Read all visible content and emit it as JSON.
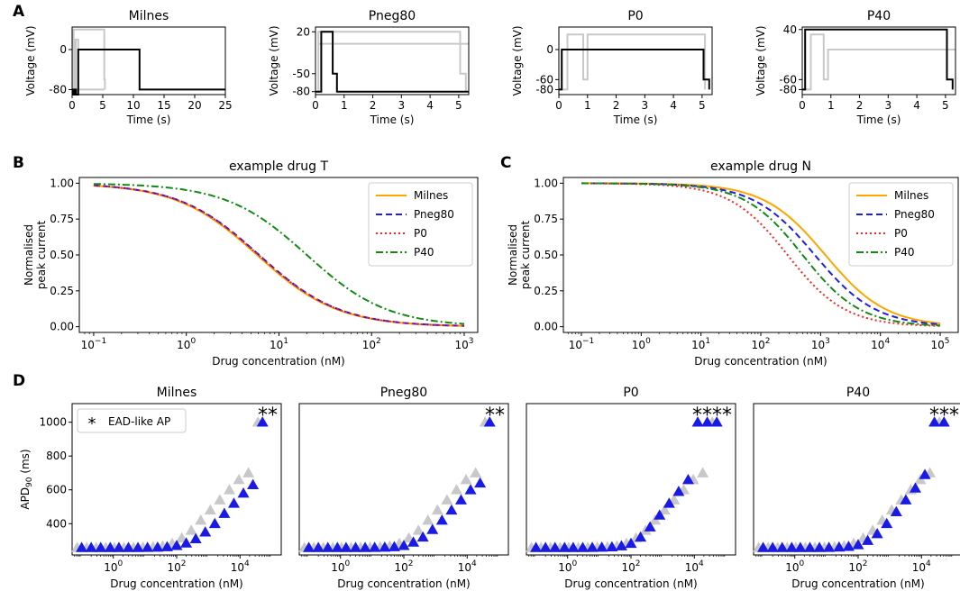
{
  "panel_labels": [
    "A",
    "B",
    "C",
    "D"
  ],
  "chart_data": [
    {
      "id": "A",
      "type": "line",
      "description_title": "Voltage protocols",
      "ylabel": "Voltage (mV)",
      "xlabel": "Time (s)",
      "subplots": [
        {
          "title": "Milnes",
          "xlim": [
            0,
            25
          ],
          "ylim": [
            -90,
            45
          ],
          "xticks": [
            0,
            5,
            10,
            15,
            20,
            25
          ],
          "yticks": [
            -80,
            0
          ],
          "series": [
            {
              "name": "Milnes",
              "color": "#000000",
              "x": [
                0,
                0.15,
                0.15,
                0.35,
                0.35,
                0.65,
                0.65,
                1,
                1,
                11,
                11,
                25
              ],
              "y": [
                -80,
                -80,
                -90,
                -90,
                -80,
                -80,
                -90,
                -90,
                0,
                0,
                -80,
                -80
              ]
            },
            {
              "name": "P40 (grey overlay)",
              "color": "#c8c8c8",
              "x": [
                0,
                0.1,
                0.1,
                0.15,
                0.15,
                0.2,
                0.2,
                0.25,
                0.25,
                1,
                1,
                5.1,
                5.1,
                5.25,
                5.25,
                5.35,
                5.35
              ],
              "y": [
                -80,
                -80,
                40,
                40,
                -60,
                -60,
                -80,
                -80,
                40,
                40,
                40,
                40,
                40,
                40,
                -60,
                -60,
                -80
              ]
            },
            {
              "name": "Pneg80 (grey overlay)",
              "color": "#c8c8c8",
              "x": [
                0,
                0.2,
                0.2,
                0.4,
                0.4,
                0.6,
                0.6,
                1,
                1,
                5.3,
                5.3
              ],
              "y": [
                -80,
                -80,
                20,
                20,
                -80,
                -80,
                20,
                20,
                -80,
                -80,
                -80
              ]
            }
          ]
        },
        {
          "title": "Pneg80",
          "xlim": [
            0,
            5.35
          ],
          "ylim": [
            -85,
            28
          ],
          "xticks": [
            0,
            1,
            2,
            3,
            4,
            5
          ],
          "yticks": [
            -80,
            -50,
            20
          ],
          "series": [
            {
              "name": "Pneg80",
              "color": "#000000",
              "x": [
                0,
                0.2,
                0.2,
                0.6,
                0.6,
                0.75,
                0.75,
                0.95,
                0.95,
                5.35
              ],
              "y": [
                -80,
                -80,
                20,
                20,
                -50,
                -50,
                -80,
                -80,
                -80,
                -80
              ]
            },
            {
              "name": "grey overlay 1",
              "color": "#c8c8c8",
              "x": [
                0,
                0.1,
                0.1,
                0.9,
                0.9,
                5.05,
                5.05,
                5.25,
                5.25
              ],
              "y": [
                -80,
                -80,
                20,
                20,
                20,
                20,
                -50,
                -50,
                -80
              ]
            },
            {
              "name": "grey overlay 2",
              "color": "#c8c8c8",
              "x": [
                0.1,
                0.9,
                0.9,
                1.0,
                1.0,
                5.35
              ],
              "y": [
                0,
                0,
                0,
                0,
                0,
                0
              ]
            }
          ]
        },
        {
          "title": "P0",
          "xlim": [
            0,
            5.35
          ],
          "ylim": [
            -90,
            45
          ],
          "xticks": [
            0,
            1,
            2,
            3,
            4,
            5
          ],
          "yticks": [
            -80,
            -60,
            0
          ],
          "series": [
            {
              "name": "P0",
              "color": "#000000",
              "x": [
                0,
                0.1,
                0.1,
                5.05,
                5.05,
                5.25,
                5.25
              ],
              "y": [
                -80,
                -80,
                0,
                0,
                -60,
                -60,
                -80
              ]
            },
            {
              "name": "grey overlay",
              "color": "#c8c8c8",
              "x": [
                0,
                0.3,
                0.3,
                0.85,
                0.85,
                1.0,
                1.0,
                5.1,
                5.1
              ],
              "y": [
                -80,
                -80,
                30,
                30,
                -60,
                -60,
                30,
                30,
                -80
              ]
            }
          ]
        },
        {
          "title": "P40",
          "xlim": [
            0,
            5.35
          ],
          "ylim": [
            -90,
            45
          ],
          "xticks": [
            0,
            1,
            2,
            3,
            4,
            5
          ],
          "yticks": [
            -80,
            -60,
            40
          ],
          "series": [
            {
              "name": "P40",
              "color": "#000000",
              "x": [
                0,
                0.1,
                0.1,
                5.05,
                5.05,
                5.25,
                5.25
              ],
              "y": [
                -80,
                -80,
                40,
                40,
                -60,
                -60,
                -80
              ]
            },
            {
              "name": "grey overlay",
              "color": "#c8c8c8",
              "x": [
                0,
                0.3,
                0.3,
                0.75,
                0.75,
                0.9,
                0.9,
                5.35
              ],
              "y": [
                -80,
                -80,
                30,
                30,
                -60,
                -60,
                0,
                0
              ]
            }
          ]
        }
      ]
    },
    {
      "id": "B",
      "type": "line",
      "title": "example drug T",
      "xlabel": "Drug concentration (nM)",
      "ylabel": "Normalised\npeak current",
      "xscale": "log",
      "xlim": [
        0.07,
        1400
      ],
      "ylim": [
        -0.04,
        1.04
      ],
      "xticks": [
        {
          "v": 0.1,
          "b": "10",
          "e": "−1"
        },
        {
          "v": 1,
          "b": "10",
          "e": "0"
        },
        {
          "v": 10,
          "b": "10",
          "e": "1"
        },
        {
          "v": 100,
          "b": "10",
          "e": "2"
        },
        {
          "v": 1000,
          "b": "10",
          "e": "3"
        }
      ],
      "yticks": [
        "0.00",
        "0.25",
        "0.50",
        "0.75",
        "1.00"
      ],
      "legend": "top-right",
      "series": [
        {
          "name": "Milnes",
          "color": "#ffa500",
          "dash": "",
          "ic50": 5.8,
          "hill": 1.0
        },
        {
          "name": "Pneg80",
          "color": "#1f1fe0",
          "dash": "7,4",
          "ic50": 6.1,
          "hill": 1.0
        },
        {
          "name": "P0",
          "color": "#ff2020",
          "dash": "2,3",
          "ic50": 6.0,
          "hill": 1.0
        },
        {
          "name": "P40",
          "color": "#138a13",
          "dash": "8,3,2,3",
          "ic50": 20.0,
          "hill": 1.0
        }
      ]
    },
    {
      "id": "C",
      "type": "line",
      "title": "example drug N",
      "xlabel": "Drug concentration (nM)",
      "ylabel": "Normalised\npeak current",
      "xscale": "log",
      "xlim": [
        0.05,
        200000
      ],
      "ylim": [
        -0.04,
        1.04
      ],
      "xticks": [
        {
          "v": 0.1,
          "b": "10",
          "e": "−1"
        },
        {
          "v": 1,
          "b": "10",
          "e": "0"
        },
        {
          "v": 10,
          "b": "10",
          "e": "1"
        },
        {
          "v": 100,
          "b": "10",
          "e": "2"
        },
        {
          "v": 1000,
          "b": "10",
          "e": "3"
        },
        {
          "v": 10000,
          "b": "10",
          "e": "4"
        },
        {
          "v": 100000,
          "b": "10",
          "e": "5"
        }
      ],
      "yticks": [
        "0.00",
        "0.25",
        "0.50",
        "0.75",
        "1.00"
      ],
      "legend": "top-right",
      "series": [
        {
          "name": "Milnes",
          "color": "#ffa500",
          "dash": "",
          "ic50": 1200,
          "hill": 0.85
        },
        {
          "name": "Pneg80",
          "color": "#1f1fe0",
          "dash": "7,4",
          "ic50": 800,
          "hill": 0.85
        },
        {
          "name": "P0",
          "color": "#ff2020",
          "dash": "2,3",
          "ic50": 280,
          "hill": 0.9
        },
        {
          "name": "P40",
          "color": "#138a13",
          "dash": "8,3,2,3",
          "ic50": 500,
          "hill": 0.9
        }
      ]
    },
    {
      "id": "D",
      "type": "scatter",
      "ylabel": "APD",
      "ylabel_sub": "90",
      "ylabel_unit": " (ms)",
      "xlabel": "Drug concentration (nM)",
      "xscale": "log",
      "xlim": [
        0.05,
        200000
      ],
      "ylim": [
        215,
        1110
      ],
      "xticks": [
        {
          "v": 1,
          "b": "10",
          "e": "0"
        },
        {
          "v": 100,
          "b": "10",
          "e": "2"
        },
        {
          "v": 10000,
          "b": "10",
          "e": "4"
        }
      ],
      "yticks": [
        400,
        600,
        800,
        1000
      ],
      "legend": {
        "marker": "*",
        "label": "EAD-like AP"
      },
      "x": [
        0.1,
        0.2,
        0.4,
        0.8,
        1.5,
        3,
        6,
        12,
        25,
        50,
        100,
        200,
        400,
        800,
        1600,
        3200,
        6400,
        12800,
        25600,
        51200
      ],
      "grey_apd": [
        258,
        258,
        258,
        258,
        258,
        258,
        259,
        260,
        262,
        268,
        283,
        315,
        360,
        420,
        480,
        540,
        600,
        660,
        700,
        1000
      ],
      "subplots": [
        {
          "title": "Milnes",
          "apd": [
            258,
            258,
            258,
            258,
            258,
            258,
            258,
            259,
            260,
            263,
            270,
            285,
            310,
            350,
            400,
            460,
            520,
            580,
            630,
            1000
          ],
          "stars": "**"
        },
        {
          "title": "Pneg80",
          "apd": [
            258,
            258,
            258,
            258,
            258,
            258,
            258,
            259,
            260,
            263,
            270,
            290,
            320,
            365,
            420,
            480,
            540,
            600,
            640,
            1000
          ],
          "stars": "**"
        },
        {
          "title": "P0",
          "apd": [
            258,
            258,
            258,
            258,
            258,
            258,
            259,
            260,
            262,
            268,
            283,
            320,
            380,
            450,
            520,
            590,
            660,
            1000,
            1000,
            1000
          ],
          "stars": "****"
        },
        {
          "title": "P40",
          "apd": [
            258,
            258,
            258,
            258,
            258,
            258,
            258,
            259,
            261,
            265,
            275,
            300,
            340,
            400,
            470,
            540,
            610,
            690,
            1000,
            1000
          ],
          "stars": "***"
        }
      ]
    }
  ]
}
